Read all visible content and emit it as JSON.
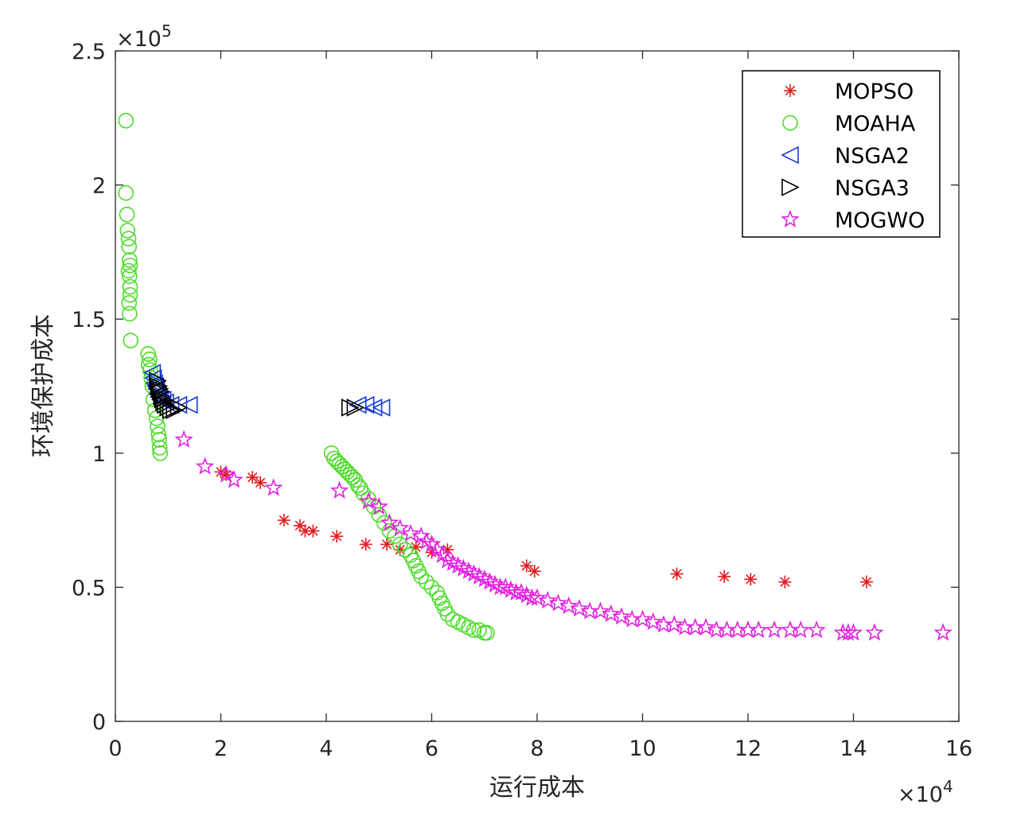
{
  "chart_data": {
    "type": "scatter",
    "title": "",
    "xlabel": "运行成本",
    "ylabel": "环境保护成本",
    "xlim": [
      0,
      16
    ],
    "ylim": [
      0,
      2.5
    ],
    "x_multiplier_label": "×10",
    "x_multiplier_exp": "4",
    "y_multiplier_label": "×10",
    "y_multiplier_exp": "5",
    "x_ticks": [
      "0",
      "2",
      "4",
      "6",
      "8",
      "10",
      "12",
      "14",
      "16"
    ],
    "y_ticks": [
      "0",
      "0.5",
      "1",
      "1.5",
      "2",
      "2.5"
    ],
    "legend_position": "top-right",
    "series": [
      {
        "name": "MOPSO",
        "marker": "asterisk",
        "color": "#e31a1c",
        "points": [
          [
            2.0,
            0.93
          ],
          [
            2.1,
            0.92
          ],
          [
            2.6,
            0.91
          ],
          [
            2.75,
            0.89
          ],
          [
            3.2,
            0.75
          ],
          [
            3.5,
            0.73
          ],
          [
            3.6,
            0.71
          ],
          [
            3.75,
            0.71
          ],
          [
            4.2,
            0.69
          ],
          [
            4.75,
            0.66
          ],
          [
            5.15,
            0.66
          ],
          [
            5.4,
            0.64
          ],
          [
            5.7,
            0.65
          ],
          [
            6.0,
            0.63
          ],
          [
            6.3,
            0.64
          ],
          [
            7.8,
            0.58
          ],
          [
            7.95,
            0.56
          ],
          [
            10.65,
            0.55
          ],
          [
            11.55,
            0.54
          ],
          [
            12.05,
            0.53
          ],
          [
            12.7,
            0.52
          ],
          [
            14.25,
            0.52
          ]
        ]
      },
      {
        "name": "MOAHA",
        "marker": "circle",
        "color": "#4ddc2a",
        "points": [
          [
            0.2,
            2.24
          ],
          [
            0.2,
            1.97
          ],
          [
            0.22,
            1.89
          ],
          [
            0.23,
            1.83
          ],
          [
            0.25,
            1.8
          ],
          [
            0.26,
            1.77
          ],
          [
            0.27,
            1.72
          ],
          [
            0.28,
            1.7
          ],
          [
            0.25,
            1.68
          ],
          [
            0.27,
            1.66
          ],
          [
            0.28,
            1.62
          ],
          [
            0.28,
            1.59
          ],
          [
            0.26,
            1.56
          ],
          [
            0.27,
            1.52
          ],
          [
            0.29,
            1.42
          ],
          [
            0.62,
            1.37
          ],
          [
            0.65,
            1.35
          ],
          [
            0.63,
            1.33
          ],
          [
            0.66,
            1.31
          ],
          [
            0.68,
            1.28
          ],
          [
            0.7,
            1.25
          ],
          [
            0.72,
            1.2
          ],
          [
            0.75,
            1.16
          ],
          [
            0.78,
            1.13
          ],
          [
            0.8,
            1.1
          ],
          [
            0.82,
            1.07
          ],
          [
            0.83,
            1.05
          ],
          [
            0.84,
            1.02
          ],
          [
            0.85,
            1.0
          ],
          [
            4.1,
            1.0
          ],
          [
            4.15,
            0.98
          ],
          [
            4.2,
            0.97
          ],
          [
            4.25,
            0.96
          ],
          [
            4.3,
            0.95
          ],
          [
            4.35,
            0.94
          ],
          [
            4.4,
            0.93
          ],
          [
            4.45,
            0.92
          ],
          [
            4.5,
            0.91
          ],
          [
            4.55,
            0.9
          ],
          [
            4.6,
            0.88
          ],
          [
            4.65,
            0.87
          ],
          [
            4.7,
            0.85
          ],
          [
            4.8,
            0.83
          ],
          [
            4.9,
            0.8
          ],
          [
            5.0,
            0.77
          ],
          [
            5.1,
            0.74
          ],
          [
            5.2,
            0.71
          ],
          [
            5.3,
            0.69
          ],
          [
            5.4,
            0.66
          ],
          [
            5.5,
            0.64
          ],
          [
            5.6,
            0.62
          ],
          [
            5.65,
            0.6
          ],
          [
            5.7,
            0.58
          ],
          [
            5.75,
            0.56
          ],
          [
            5.8,
            0.54
          ],
          [
            5.9,
            0.52
          ],
          [
            6.0,
            0.5
          ],
          [
            6.1,
            0.48
          ],
          [
            6.15,
            0.46
          ],
          [
            6.2,
            0.44
          ],
          [
            6.25,
            0.42
          ],
          [
            6.3,
            0.4
          ],
          [
            6.4,
            0.38
          ],
          [
            6.5,
            0.37
          ],
          [
            6.6,
            0.36
          ],
          [
            6.7,
            0.35
          ],
          [
            6.8,
            0.34
          ],
          [
            6.9,
            0.34
          ],
          [
            7.0,
            0.33
          ],
          [
            7.05,
            0.33
          ]
        ]
      },
      {
        "name": "NSGA2",
        "marker": "triangle-left",
        "color": "#1a3ccf",
        "points": [
          [
            0.7,
            1.3
          ],
          [
            0.72,
            1.28
          ],
          [
            0.74,
            1.26
          ],
          [
            0.76,
            1.25
          ],
          [
            0.78,
            1.24
          ],
          [
            0.8,
            1.22
          ],
          [
            0.82,
            1.21
          ],
          [
            0.85,
            1.2
          ],
          [
            0.9,
            1.2
          ],
          [
            0.95,
            1.19
          ],
          [
            1.05,
            1.18
          ],
          [
            1.2,
            1.18
          ],
          [
            1.4,
            1.18
          ],
          [
            4.6,
            1.18
          ],
          [
            4.75,
            1.18
          ],
          [
            4.9,
            1.17
          ],
          [
            5.05,
            1.17
          ]
        ]
      },
      {
        "name": "NSGA3",
        "marker": "triangle-right",
        "color": "#000000",
        "points": [
          [
            0.8,
            1.27
          ],
          [
            0.82,
            1.25
          ],
          [
            0.84,
            1.24
          ],
          [
            0.86,
            1.23
          ],
          [
            0.88,
            1.21
          ],
          [
            0.9,
            1.2
          ],
          [
            0.92,
            1.19
          ],
          [
            0.95,
            1.18
          ],
          [
            1.0,
            1.17
          ],
          [
            1.05,
            1.16
          ],
          [
            1.12,
            1.16
          ],
          [
            1.2,
            1.17
          ],
          [
            4.45,
            1.17
          ],
          [
            4.55,
            1.17
          ]
        ]
      },
      {
        "name": "MOGWO",
        "marker": "pentagram",
        "color": "#e020e0",
        "points": [
          [
            1.3,
            1.05
          ],
          [
            1.7,
            0.95
          ],
          [
            2.1,
            0.92
          ],
          [
            2.25,
            0.9
          ],
          [
            3.0,
            0.87
          ],
          [
            4.25,
            0.86
          ],
          [
            4.8,
            0.82
          ],
          [
            5.0,
            0.8
          ],
          [
            5.2,
            0.74
          ],
          [
            5.4,
            0.72
          ],
          [
            5.6,
            0.7
          ],
          [
            5.8,
            0.69
          ],
          [
            5.9,
            0.67
          ],
          [
            6.0,
            0.66
          ],
          [
            6.1,
            0.64
          ],
          [
            6.2,
            0.62
          ],
          [
            6.3,
            0.6
          ],
          [
            6.4,
            0.59
          ],
          [
            6.5,
            0.58
          ],
          [
            6.6,
            0.57
          ],
          [
            6.7,
            0.56
          ],
          [
            6.8,
            0.55
          ],
          [
            6.9,
            0.54
          ],
          [
            7.0,
            0.53
          ],
          [
            7.1,
            0.52
          ],
          [
            7.2,
            0.51
          ],
          [
            7.3,
            0.5
          ],
          [
            7.4,
            0.5
          ],
          [
            7.5,
            0.49
          ],
          [
            7.6,
            0.48
          ],
          [
            7.7,
            0.48
          ],
          [
            7.8,
            0.47
          ],
          [
            7.9,
            0.46
          ],
          [
            8.0,
            0.46
          ],
          [
            8.2,
            0.45
          ],
          [
            8.4,
            0.44
          ],
          [
            8.6,
            0.43
          ],
          [
            8.8,
            0.42
          ],
          [
            9.0,
            0.41
          ],
          [
            9.2,
            0.41
          ],
          [
            9.4,
            0.4
          ],
          [
            9.6,
            0.39
          ],
          [
            9.8,
            0.38
          ],
          [
            10.0,
            0.38
          ],
          [
            10.2,
            0.37
          ],
          [
            10.4,
            0.36
          ],
          [
            10.6,
            0.36
          ],
          [
            10.8,
            0.35
          ],
          [
            11.0,
            0.35
          ],
          [
            11.2,
            0.35
          ],
          [
            11.4,
            0.34
          ],
          [
            11.6,
            0.34
          ],
          [
            11.8,
            0.34
          ],
          [
            12.0,
            0.34
          ],
          [
            12.2,
            0.34
          ],
          [
            12.5,
            0.34
          ],
          [
            12.8,
            0.34
          ],
          [
            13.0,
            0.34
          ],
          [
            13.3,
            0.34
          ],
          [
            13.8,
            0.33
          ],
          [
            13.9,
            0.33
          ],
          [
            14.0,
            0.33
          ],
          [
            14.4,
            0.33
          ],
          [
            15.7,
            0.33
          ]
        ]
      }
    ]
  }
}
